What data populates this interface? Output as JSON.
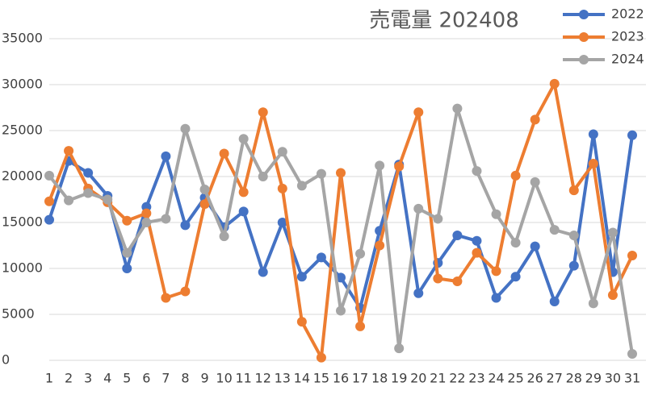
{
  "chart_data": {
    "type": "line",
    "title": "売電量 202408",
    "categories": [
      "1",
      "2",
      "3",
      "4",
      "5",
      "6",
      "7",
      "8",
      "9",
      "10",
      "11",
      "12",
      "13",
      "14",
      "15",
      "16",
      "17",
      "18",
      "19",
      "20",
      "21",
      "22",
      "23",
      "24",
      "25",
      "26",
      "27",
      "28",
      "29",
      "30",
      "31"
    ],
    "series": [
      {
        "name": "2022",
        "color": "#4472c4",
        "values": [
          15300,
          21700,
          20400,
          17900,
          10000,
          16700,
          22200,
          14700,
          17700,
          14500,
          16200,
          9600,
          15000,
          9100,
          11200,
          9000,
          5700,
          14100,
          21300,
          7300,
          10600,
          13600,
          13000,
          6800,
          9100,
          12400,
          6400,
          10300,
          24600,
          9600,
          24500
        ]
      },
      {
        "name": "2023",
        "color": "#ed7d31",
        "values": [
          17300,
          22800,
          18700,
          17200,
          15200,
          16000,
          6800,
          7500,
          17000,
          22500,
          18300,
          27000,
          18700,
          4200,
          300,
          20400,
          3700,
          12500,
          21100,
          27000,
          8900,
          8600,
          11700,
          9700,
          20100,
          26200,
          30100,
          18500,
          21400,
          7100,
          11400
        ]
      },
      {
        "name": "2024",
        "color": "#a5a5a5",
        "values": [
          20100,
          17400,
          18200,
          17500,
          11700,
          15000,
          15400,
          25200,
          18600,
          13500,
          24100,
          20000,
          22700,
          19000,
          20300,
          5400,
          11600,
          21200,
          1300,
          16500,
          15400,
          27400,
          20600,
          15900,
          12800,
          19400,
          14200,
          13600,
          6200,
          13900,
          700
        ]
      }
    ],
    "ylim": [
      0,
      35000
    ],
    "yticks": [
      0,
      5000,
      10000,
      15000,
      20000,
      25000,
      30000,
      35000
    ],
    "grid": true
  }
}
